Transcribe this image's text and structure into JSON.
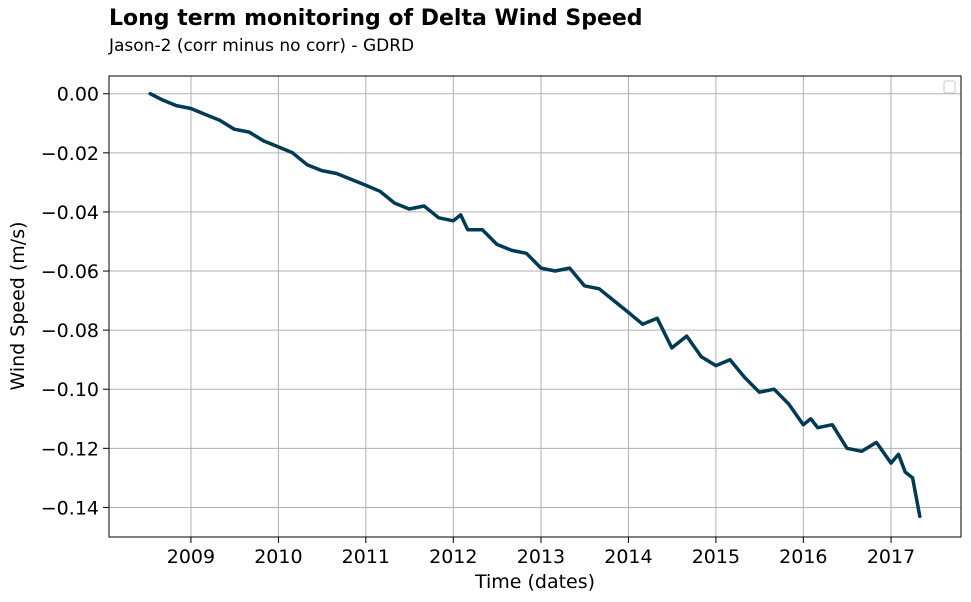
{
  "chart_data": {
    "type": "line",
    "title": "Long term monitoring of Delta Wind Speed",
    "subtitle": "Jason-2 (corr minus no corr) - GDRD",
    "xlabel": "Time (dates)",
    "ylabel": "Wind Speed (m/s)",
    "xlim": [
      "2008-01-25",
      "2017-10-20"
    ],
    "ylim": [
      -0.15,
      0.006
    ],
    "xticks": [
      "2009",
      "2010",
      "2011",
      "2012",
      "2013",
      "2014",
      "2015",
      "2016",
      "2017"
    ],
    "yticks": [
      "0.00",
      "−0.02",
      "−0.04",
      "−0.06",
      "−0.08",
      "−0.10",
      "−0.12",
      "−0.14"
    ],
    "grid": true,
    "legend": "top-right (empty)",
    "colors": {
      "line": "#003a54",
      "grid": "#b0b0b0"
    },
    "series": [
      {
        "x": [
          "2008-07-15",
          "2008-09-01",
          "2008-11-01",
          "2009-01-01",
          "2009-03-01",
          "2009-05-01",
          "2009-07-01",
          "2009-09-01",
          "2009-11-01",
          "2010-01-01",
          "2010-03-01",
          "2010-05-01",
          "2010-07-01",
          "2010-09-01",
          "2010-11-01",
          "2011-01-01",
          "2011-03-01",
          "2011-05-01",
          "2011-07-01",
          "2011-09-01",
          "2011-11-01",
          "2012-01-01",
          "2012-02-01",
          "2012-03-01",
          "2012-05-01",
          "2012-07-01",
          "2012-09-01",
          "2012-11-01",
          "2013-01-01",
          "2013-03-01",
          "2013-05-01",
          "2013-07-01",
          "2013-09-01",
          "2013-11-01",
          "2014-01-01",
          "2014-03-01",
          "2014-05-01",
          "2014-07-01",
          "2014-09-01",
          "2014-11-01",
          "2015-01-01",
          "2015-03-01",
          "2015-05-01",
          "2015-07-01",
          "2015-09-01",
          "2015-11-01",
          "2016-01-01",
          "2016-02-01",
          "2016-03-01",
          "2016-05-01",
          "2016-07-01",
          "2016-09-01",
          "2016-11-01",
          "2017-01-01",
          "2017-02-01",
          "2017-03-01",
          "2017-04-01",
          "2017-05-01"
        ],
        "y": [
          0.0,
          -0.002,
          -0.004,
          -0.005,
          -0.007,
          -0.009,
          -0.012,
          -0.013,
          -0.016,
          -0.018,
          -0.02,
          -0.024,
          -0.026,
          -0.027,
          -0.029,
          -0.031,
          -0.033,
          -0.037,
          -0.039,
          -0.038,
          -0.042,
          -0.043,
          -0.041,
          -0.046,
          -0.046,
          -0.051,
          -0.053,
          -0.054,
          -0.059,
          -0.06,
          -0.059,
          -0.065,
          -0.066,
          -0.07,
          -0.074,
          -0.078,
          -0.076,
          -0.086,
          -0.082,
          -0.089,
          -0.092,
          -0.09,
          -0.096,
          -0.101,
          -0.1,
          -0.105,
          -0.112,
          -0.11,
          -0.113,
          -0.112,
          -0.12,
          -0.121,
          -0.118,
          -0.125,
          -0.122,
          -0.128,
          -0.13,
          -0.143
        ]
      }
    ]
  }
}
